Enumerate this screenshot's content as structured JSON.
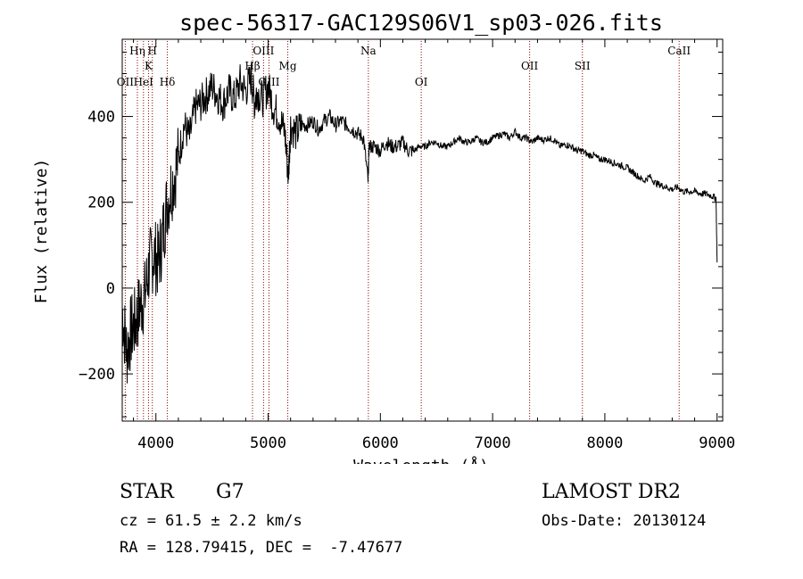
{
  "chart_data": {
    "type": "line",
    "title": "spec-56317-GAC129S06V1_sp03-026.fits",
    "xlabel": "Wavelength (Å)",
    "ylabel": "Flux (relative)",
    "xlim": [
      3700,
      9050
    ],
    "ylim": [
      -310,
      580
    ],
    "xticks": [
      4000,
      5000,
      6000,
      7000,
      8000,
      9000
    ],
    "yticks": [
      -200,
      0,
      200,
      400
    ],
    "grid": false,
    "series": [
      {
        "x": [
          3700,
          3740,
          3780,
          3820,
          3860,
          3900,
          3940,
          3980,
          4020,
          4060,
          4100,
          4150,
          4200,
          4250,
          4300,
          4350,
          4400,
          4450,
          4500,
          4550,
          4600,
          4650,
          4700,
          4750,
          4800,
          4850,
          4880,
          4900,
          4950,
          5000,
          5050,
          5100,
          5150,
          5180,
          5200,
          5250,
          5300,
          5350,
          5400,
          5450,
          5500,
          5550,
          5600,
          5650,
          5700,
          5750,
          5800,
          5850,
          5890,
          5900,
          5950,
          6000,
          6050,
          6100,
          6150,
          6200,
          6250,
          6300,
          6350,
          6400,
          6450,
          6500,
          6550,
          6600,
          6650,
          6700,
          6750,
          6800,
          6850,
          6900,
          6950,
          7000,
          7050,
          7100,
          7150,
          7200,
          7250,
          7300,
          7350,
          7400,
          7450,
          7500,
          7550,
          7600,
          7650,
          7700,
          7750,
          7800,
          7850,
          7900,
          7950,
          8000,
          8050,
          8100,
          8150,
          8200,
          8250,
          8300,
          8350,
          8400,
          8450,
          8500,
          8550,
          8600,
          8650,
          8700,
          8750,
          8800,
          8850,
          8900,
          8950,
          8990,
          9000
        ],
        "y": [
          -50,
          -150,
          -100,
          -80,
          -40,
          -20,
          50,
          80,
          60,
          120,
          200,
          250,
          300,
          380,
          350,
          420,
          430,
          450,
          470,
          450,
          430,
          460,
          440,
          480,
          460,
          490,
          430,
          460,
          440,
          470,
          420,
          400,
          360,
          260,
          380,
          360,
          380,
          380,
          390,
          370,
          390,
          400,
          380,
          390,
          380,
          370,
          360,
          350,
          250,
          330,
          330,
          320,
          340,
          330,
          330,
          340,
          320,
          320,
          330,
          330,
          340,
          340,
          330,
          330,
          340,
          350,
          340,
          340,
          350,
          340,
          340,
          350,
          355,
          360,
          350,
          365,
          350,
          350,
          340,
          350,
          345,
          350,
          345,
          330,
          335,
          330,
          320,
          320,
          310,
          310,
          300,
          300,
          295,
          290,
          285,
          280,
          270,
          260,
          250,
          260,
          245,
          240,
          235,
          230,
          235,
          225,
          225,
          225,
          220,
          220,
          215,
          210,
          60
        ],
        "x_min_max": [
          3700,
          9000
        ]
      }
    ],
    "annotations": [
      {
        "label": "OII",
        "x": 3727,
        "row": 3
      },
      {
        "label": "Hη",
        "x": 3835,
        "row": 1
      },
      {
        "label": "HeI",
        "x": 3889,
        "row": 3
      },
      {
        "label": "K",
        "x": 3934,
        "row": 2
      },
      {
        "label": "H",
        "x": 3968,
        "row": 1
      },
      {
        "label": "Hδ",
        "x": 4102,
        "row": 3
      },
      {
        "label": "Hβ",
        "x": 4861,
        "row": 2
      },
      {
        "label": "OIII",
        "x": 4959,
        "row": 1
      },
      {
        "label": "OIII",
        "x": 5007,
        "row": 3
      },
      {
        "label": "Mg",
        "x": 5175,
        "row": 2
      },
      {
        "label": "Na",
        "x": 5893,
        "row": 1
      },
      {
        "label": "OI",
        "x": 6364,
        "row": 3
      },
      {
        "label": "OII",
        "x": 7330,
        "row": 2
      },
      {
        "label": "SII",
        "x": 7800,
        "row": 2
      },
      {
        "label": "CaII",
        "x": 8662,
        "row": 1
      }
    ],
    "colors": {
      "line": "#000000",
      "marker_lines": "#8b0000"
    }
  },
  "info": {
    "class": "STAR",
    "subclass": "G7",
    "cz": "cz = 61.5 ± 2.2 km/s",
    "coords": "RA = 128.79415, DEC =  -7.47677",
    "survey": "LAMOST DR2",
    "obs_date": "Obs-Date: 20130124"
  }
}
